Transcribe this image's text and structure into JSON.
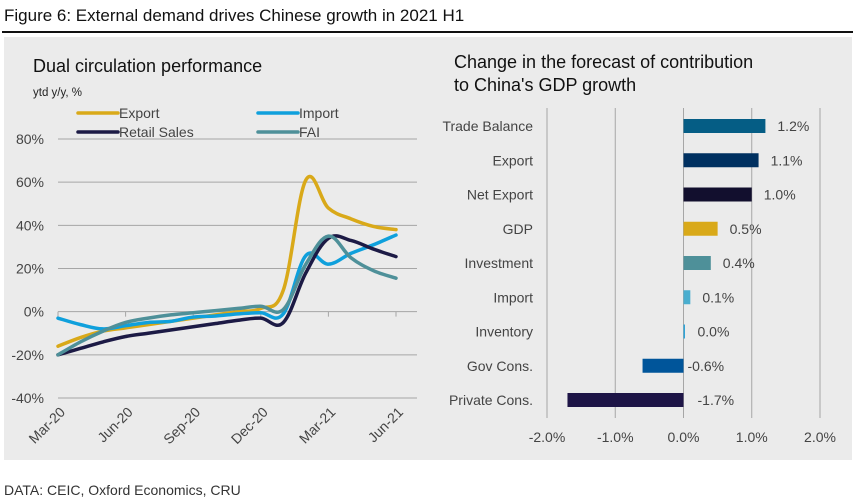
{
  "figure": {
    "title": "Figure 6: External demand drives Chinese growth in 2021 H1",
    "source": "DATA: CEIC, Oxford Economics, CRU"
  },
  "chart_data": [
    {
      "type": "line",
      "title": "Dual circulation performance",
      "subtitle": "ytd y/y, %",
      "xlabel": "",
      "ylabel": "ytd y/y, %",
      "x": [
        "Mar-20",
        "Apr-20",
        "May-20",
        "Jun-20",
        "Jul-20",
        "Aug-20",
        "Sep-20",
        "Oct-20",
        "Nov-20",
        "Dec-20",
        "Jan-21",
        "Feb-21",
        "Mar-21",
        "Apr-21",
        "May-21",
        "Jun-21"
      ],
      "x_tick_labels": [
        "Mar-20",
        "Jun-20",
        "Sep-20",
        "Dec-20",
        "Mar-21",
        "Jun-21"
      ],
      "y_tick_labels": [
        "80%",
        "60%",
        "40%",
        "20%",
        "0%",
        "-20%",
        "-40%"
      ],
      "ylim": [
        -40,
        80
      ],
      "y_ticks": [
        80,
        60,
        40,
        20,
        0,
        -20,
        -40
      ],
      "grid": true,
      "legend": "top",
      "series": [
        {
          "name": "Export",
          "color": "#d9a919",
          "values": [
            -16,
            -12,
            -9,
            -7.5,
            -6,
            -4.5,
            -3,
            -1.5,
            0,
            1.5,
            10,
            61,
            48,
            43,
            39.5,
            38
          ]
        },
        {
          "name": "Import",
          "color": "#0fa0dc",
          "values": [
            -3,
            -6,
            -8,
            -6.5,
            -5,
            -4.5,
            -2.5,
            -2,
            -1,
            -0.5,
            -1,
            26,
            22,
            27,
            31,
            35.5
          ]
        },
        {
          "name": "Retail Sales",
          "color": "#1c1a45",
          "values": [
            -20,
            -17,
            -14,
            -11.5,
            -10,
            -8.5,
            -7,
            -5.5,
            -4,
            -3,
            -5,
            18,
            34,
            33,
            29,
            25.5
          ]
        },
        {
          "name": "FAI",
          "color": "#4e9099",
          "values": [
            -20,
            -14,
            -9,
            -5,
            -3,
            -1.5,
            -0.5,
            0.5,
            1.5,
            2.5,
            1,
            22,
            35,
            25,
            19,
            15.5
          ]
        }
      ]
    },
    {
      "type": "bar",
      "orientation": "horizontal",
      "title": "Change in the forecast of contribution to China's GDP growth",
      "title_lines": [
        "Change in the forecast of contribution",
        "to China's GDP growth"
      ],
      "categories": [
        "Trade Balance",
        "Export",
        "Net Export",
        "GDP",
        "Investment",
        "Import",
        "Inventory",
        "Gov Cons.",
        "Private Cons."
      ],
      "values": [
        1.2,
        1.1,
        1.0,
        0.5,
        0.4,
        0.1,
        0.02,
        -0.6,
        -1.7
      ],
      "value_labels": [
        "1.2%",
        "1.1%",
        "1.0%",
        "0.5%",
        "0.4%",
        "0.1%",
        "0.0%",
        "-0.6%",
        "-1.7%"
      ],
      "colors": [
        "#055d85",
        "#003060",
        "#120f2e",
        "#d9a919",
        "#4e9099",
        "#4aaecf",
        "#2ea4d8",
        "#00559a",
        "#1e1547"
      ],
      "xlim": [
        -2.0,
        2.0
      ],
      "x_ticks": [
        -2,
        -1,
        0,
        1,
        2
      ],
      "x_tick_labels": [
        "-2.0%",
        "-1.0%",
        "0.0%",
        "1.0%",
        "2.0%"
      ],
      "xlabel": "",
      "ylabel": "",
      "grid": true
    }
  ]
}
